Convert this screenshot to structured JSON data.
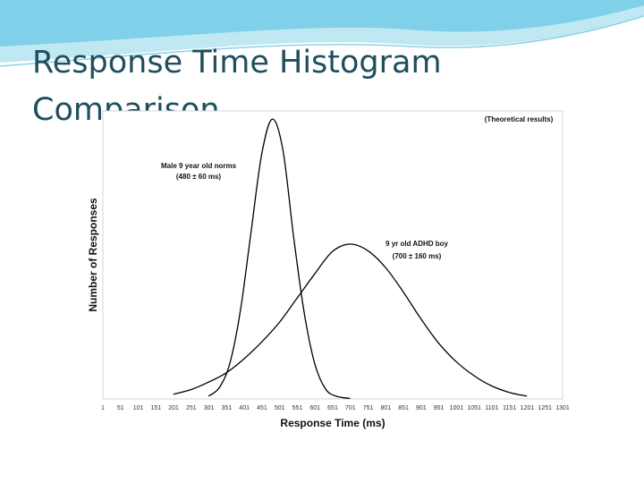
{
  "slide": {
    "title": "Response Time Histogram Comparison",
    "accent_color": "#1f4e5f",
    "banner_color": "#7fd0e8"
  },
  "chart_data": {
    "type": "line",
    "title": "",
    "xlabel": "Response Time (ms)",
    "ylabel": "Number of Responses",
    "xlim": [
      1,
      1301
    ],
    "x_ticks": [
      "1",
      "51",
      "101",
      "151",
      "201",
      "251",
      "301",
      "351",
      "401",
      "451",
      "501",
      "551",
      "601",
      "651",
      "701",
      "751",
      "801",
      "851",
      "901",
      "951",
      "1001",
      "1051",
      "1101",
      "1151",
      "1201",
      "1251",
      "1301"
    ],
    "grid": false,
    "note": "(Theoretical results)",
    "series": [
      {
        "name": "Male 9 year old norms",
        "label_line2": "(480 ± 60 ms)",
        "x": [
          300,
          330,
          360,
          390,
          420,
          450,
          480,
          510,
          540,
          570,
          600,
          630,
          660,
          700
        ],
        "y": [
          0.3,
          1.2,
          3.8,
          9.5,
          17.9,
          26.2,
          30.0,
          26.7,
          17.5,
          9.3,
          3.8,
          1.1,
          0.3,
          0.05
        ],
        "color": "#000000"
      },
      {
        "name": "9 yr old ADHD boy",
        "label_line2": "(700 ± 160 ms)",
        "x": [
          200,
          250,
          300,
          350,
          400,
          450,
          500,
          550,
          600,
          650,
          700,
          750,
          800,
          850,
          900,
          950,
          1000,
          1050,
          1100,
          1150,
          1200
        ],
        "y": [
          0.5,
          1.0,
          1.8,
          2.8,
          4.3,
          6.1,
          8.2,
          10.8,
          13.4,
          15.8,
          16.6,
          15.9,
          14.1,
          11.5,
          8.6,
          6.0,
          4.0,
          2.5,
          1.4,
          0.7,
          0.3
        ],
        "color": "#000000"
      }
    ]
  }
}
